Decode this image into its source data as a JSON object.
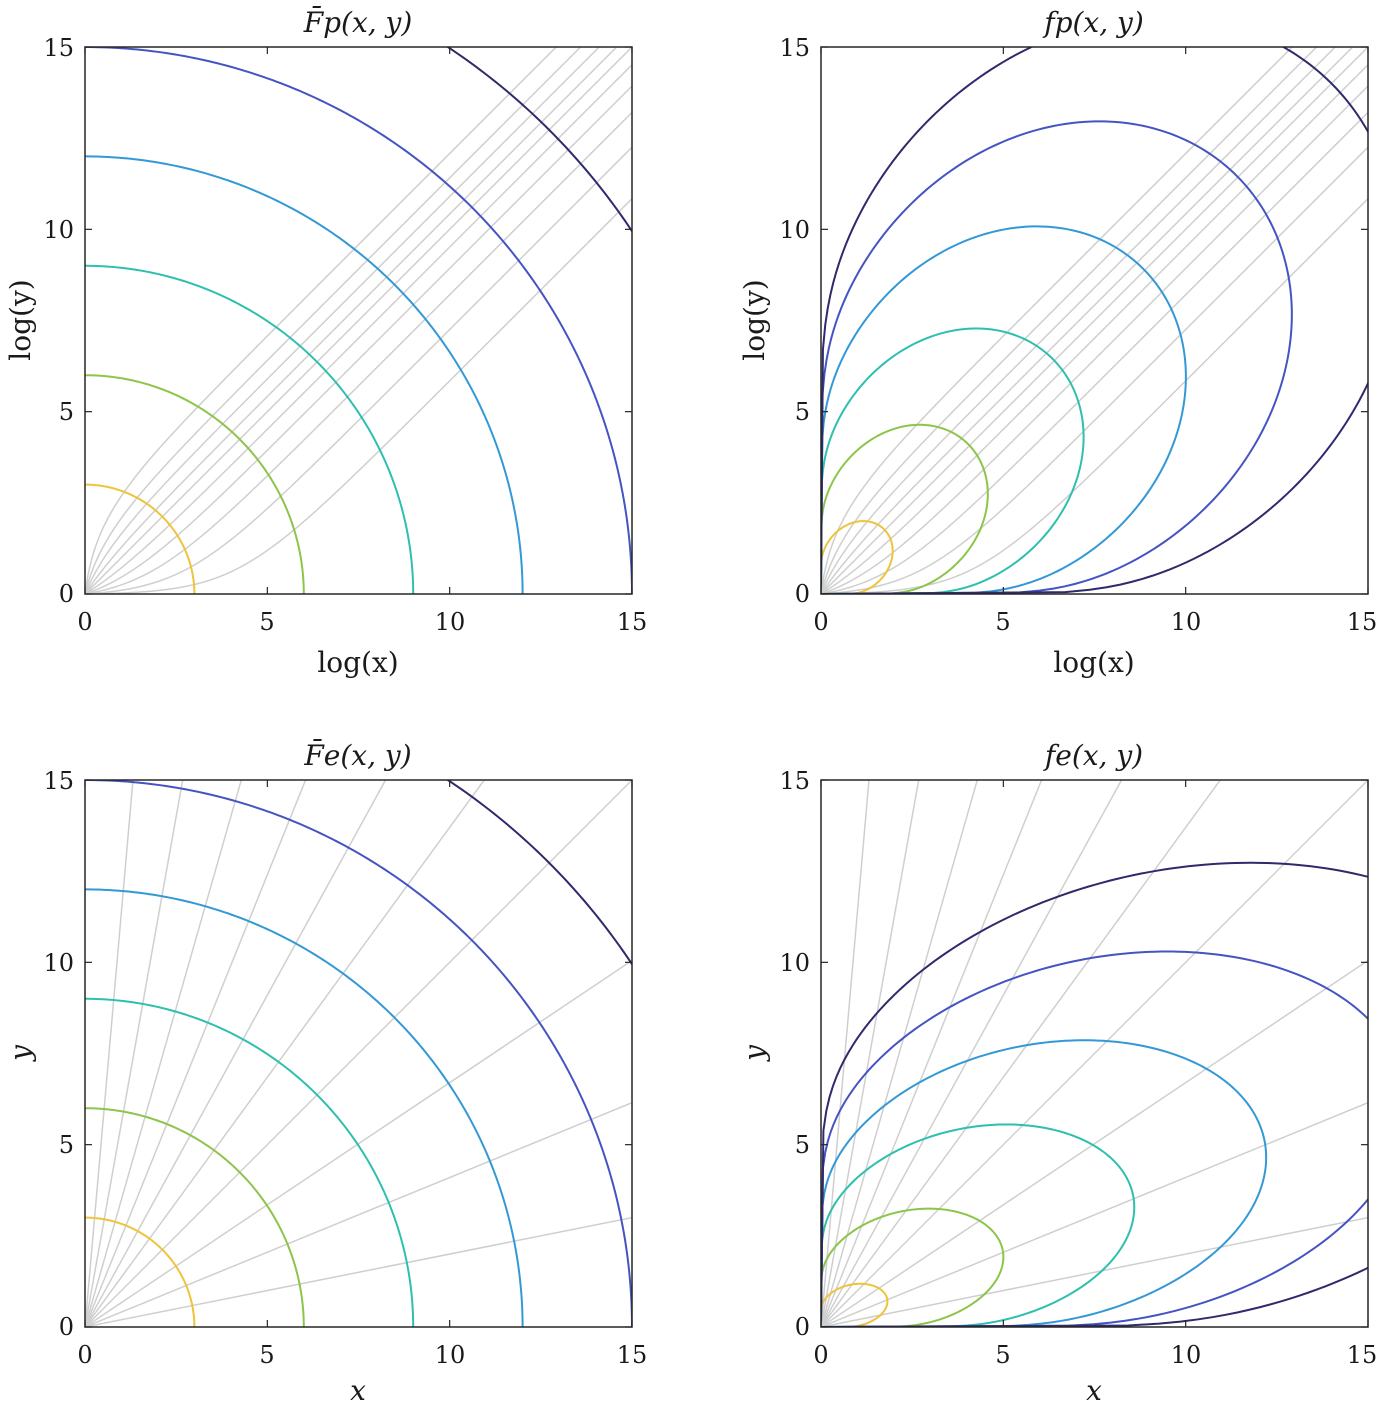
{
  "figure": {
    "colors": {
      "contour_levels": [
        "#edc43a",
        "#8dc44a",
        "#2ebfae",
        "#3399d6",
        "#4454c2",
        "#2e2a6b"
      ],
      "ray": "#cfcfcf",
      "frame": "#262626"
    }
  },
  "chart_data": [
    {
      "type": "contour",
      "title": "F̄p(x, y)",
      "xlabel": "log(x)",
      "ylabel": "log(y)",
      "xlim": [
        0,
        15
      ],
      "ylim": [
        0,
        15
      ],
      "xticks": [
        "0",
        "5",
        "10",
        "15"
      ],
      "yticks": [
        "0",
        "5",
        "10",
        "15"
      ],
      "grid": false,
      "contours": [
        {
          "level_index": 0,
          "shape": "circle",
          "radius": 3
        },
        {
          "level_index": 1,
          "shape": "circle",
          "radius": 6
        },
        {
          "level_index": 2,
          "shape": "circle",
          "radius": 9
        },
        {
          "level_index": 3,
          "shape": "circle",
          "radius": 12
        },
        {
          "level_index": 4,
          "shape": "circle",
          "radius": 15
        },
        {
          "level_index": 5,
          "shape": "circle",
          "radius": 18
        }
      ],
      "rays": {
        "shape": "log-transformed rays",
        "slopes": [
          0.25,
          0.4,
          0.55,
          0.7,
          0.85,
          1.0,
          1.15,
          1.35,
          1.6,
          2.0
        ]
      }
    },
    {
      "type": "contour",
      "title": "fp(x, y)",
      "xlabel": "log(x)",
      "ylabel": "log(y)",
      "xlim": [
        0,
        15
      ],
      "ylim": [
        0,
        15
      ],
      "xticks": [
        "0",
        "5",
        "10",
        "15"
      ],
      "yticks": [
        "0",
        "5",
        "10",
        "15"
      ],
      "grid": false,
      "contours": [
        {
          "level_index": 0,
          "shape": "density",
          "radius": 2.5
        },
        {
          "level_index": 1,
          "shape": "density",
          "radius": 5.8
        },
        {
          "level_index": 2,
          "shape": "density",
          "radius": 9.1
        },
        {
          "level_index": 3,
          "shape": "density",
          "radius": 12.6
        },
        {
          "level_index": 4,
          "shape": "density",
          "radius": 16.2
        },
        {
          "level_index": 5,
          "shape": "density",
          "radius": 19.8
        }
      ],
      "rays": {
        "shape": "log-transformed rays",
        "slopes": [
          0.25,
          0.4,
          0.55,
          0.7,
          0.85,
          1.0,
          1.15,
          1.35,
          1.6,
          2.0
        ]
      }
    },
    {
      "type": "contour",
      "title": "F̄e(x, y)",
      "xlabel": "x",
      "ylabel": "y",
      "xlim": [
        0,
        15
      ],
      "ylim": [
        0,
        15
      ],
      "xticks": [
        "0",
        "5",
        "10",
        "15"
      ],
      "yticks": [
        "0",
        "5",
        "10",
        "15"
      ],
      "grid": false,
      "contours": [
        {
          "level_index": 0,
          "shape": "circle",
          "radius": 3
        },
        {
          "level_index": 1,
          "shape": "circle",
          "radius": 6
        },
        {
          "level_index": 2,
          "shape": "circle",
          "radius": 9
        },
        {
          "level_index": 3,
          "shape": "circle",
          "radius": 12
        },
        {
          "level_index": 4,
          "shape": "circle",
          "radius": 15
        },
        {
          "level_index": 5,
          "shape": "circle",
          "radius": 18
        }
      ],
      "rays": {
        "shape": "straight rays from origin",
        "slopes": [
          0.2,
          0.41,
          0.67,
          1.0,
          1.37,
          1.82,
          2.48,
          3.5,
          5.6,
          11.4
        ]
      }
    },
    {
      "type": "contour",
      "title": "fe(x, y)",
      "xlabel": "x",
      "ylabel": "y",
      "xlim": [
        0,
        15
      ],
      "ylim": [
        0,
        15
      ],
      "xticks": [
        "0",
        "5",
        "10",
        "15"
      ],
      "yticks": [
        "0",
        "5",
        "10",
        "15"
      ],
      "grid": false,
      "contours": [
        {
          "level_index": 0,
          "shape": "density",
          "radius": 1.9
        },
        {
          "level_index": 1,
          "shape": "density",
          "radius": 5.2
        },
        {
          "level_index": 2,
          "shape": "density",
          "radius": 8.9
        },
        {
          "level_index": 3,
          "shape": "density",
          "radius": 12.6
        },
        {
          "level_index": 4,
          "shape": "density",
          "radius": 16.5
        },
        {
          "level_index": 5,
          "shape": "density",
          "radius": 20.4
        }
      ],
      "rays": {
        "shape": "straight rays from origin",
        "slopes": [
          0.2,
          0.41,
          0.67,
          1.0,
          1.37,
          1.82,
          2.48,
          3.5,
          5.6,
          11.4
        ]
      }
    }
  ]
}
